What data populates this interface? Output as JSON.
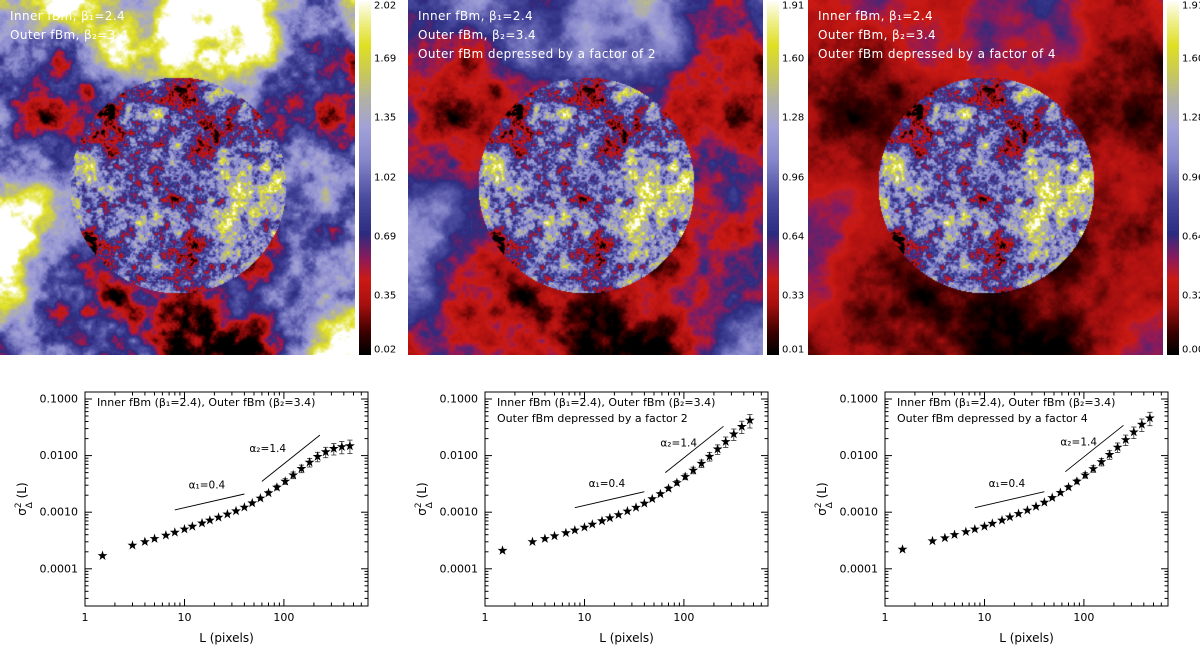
{
  "panels": [
    {
      "title_lines": [
        "Inner fBm, β₁=2.4",
        "Outer fBm, β₂=3.4"
      ],
      "colorbar_ticks": [
        "2.02",
        "1.69",
        "1.35",
        "1.02",
        "0.69",
        "0.35",
        "0.02"
      ],
      "vmin": 0.02,
      "vmax": 2.02,
      "outer_divisor": 1
    },
    {
      "title_lines": [
        "Inner fBm, β₁=2.4",
        "Outer fBm, β₂=3.4",
        "Outer fBm depressed by a factor of 2"
      ],
      "colorbar_ticks": [
        "1.91",
        "1.60",
        "1.28",
        "0.96",
        "0.64",
        "0.33",
        "0.01"
      ],
      "vmin": 0.01,
      "vmax": 1.91,
      "outer_divisor": 2
    },
    {
      "title_lines": [
        "Inner fBm, β₁=2.4",
        "Outer fBm, β₂=3.4",
        "Outer fBm depressed by a factor of 4"
      ],
      "colorbar_ticks": [
        "1.91",
        "1.60",
        "1.28",
        "0.96",
        "0.64",
        "0.32",
        "0.00"
      ],
      "vmin": 0.0,
      "vmax": 1.91,
      "outer_divisor": 4
    }
  ],
  "colormap": {
    "stops": [
      [
        0.0,
        "#000000"
      ],
      [
        0.06,
        "#3c0000"
      ],
      [
        0.14,
        "#a81010"
      ],
      [
        0.21,
        "#cc1a14"
      ],
      [
        0.27,
        "#8c1a5c"
      ],
      [
        0.34,
        "#2c2c80"
      ],
      [
        0.44,
        "#4c4ca0"
      ],
      [
        0.55,
        "#8888cc"
      ],
      [
        0.64,
        "#a2a2d8"
      ],
      [
        0.72,
        "#b2b2a6"
      ],
      [
        0.79,
        "#c8c85c"
      ],
      [
        0.87,
        "#e0e022"
      ],
      [
        0.94,
        "#f0f08e"
      ],
      [
        1.0,
        "#ffffff"
      ]
    ]
  },
  "chart_data": [
    {
      "type": "scatter",
      "legend_lines": [
        "Inner fBm (β₁=2.4), Outer fBm (β₂=3.4)"
      ],
      "xlabel": "L (pixels)",
      "ylabel_parts": {
        "base": "σ",
        "sup": "2",
        "sub": "Δ",
        "rest": " (L)"
      },
      "xlim": [
        1,
        700
      ],
      "ylim": [
        2.2e-05,
        0.133
      ],
      "xticks": [
        1,
        10,
        100
      ],
      "xtick_labels": [
        "1",
        "10",
        "100"
      ],
      "yticks": [
        0.0001,
        0.001,
        0.01,
        0.1
      ],
      "ytick_labels": [
        "0.0001",
        "0.0010",
        "0.0100",
        "0.1000"
      ],
      "x": [
        1.5,
        3,
        4,
        5,
        6.5,
        8,
        10,
        12,
        15,
        18,
        22,
        27,
        33,
        40,
        48,
        58,
        70,
        85,
        103,
        124,
        150,
        181,
        218,
        263,
        317,
        382,
        460
      ],
      "y": [
        0.00017,
        0.00026,
        0.0003,
        0.00034,
        0.00039,
        0.00044,
        0.0005,
        0.00056,
        0.00064,
        0.00072,
        0.00081,
        0.00092,
        0.00105,
        0.00122,
        0.00145,
        0.00176,
        0.00218,
        0.00274,
        0.0035,
        0.00452,
        0.0059,
        0.0076,
        0.0096,
        0.0116,
        0.0133,
        0.0143,
        0.0148
      ],
      "annotations": [
        {
          "label": "α₁=0.4",
          "x1": 8,
          "y1": 0.0011,
          "x2": 40,
          "y2": 0.0021,
          "lx": 11,
          "ly": 0.0026
        },
        {
          "label": "α₂=1.4",
          "x1": 60,
          "y1": 0.0035,
          "x2": 230,
          "y2": 0.023,
          "lx": 45,
          "ly": 0.0115
        }
      ]
    },
    {
      "type": "scatter",
      "legend_lines": [
        "Inner fBm (β₁=2.4), Outer fBm (β₂=3.4)",
        "Outer fBm depressed by a factor 2"
      ],
      "xlabel": "L (pixels)",
      "ylabel_parts": {
        "base": "σ",
        "sup": "2",
        "sub": "Δ",
        "rest": " (L)"
      },
      "xlim": [
        1,
        700
      ],
      "ylim": [
        2.2e-05,
        0.133
      ],
      "xticks": [
        1,
        10,
        100
      ],
      "xtick_labels": [
        "1",
        "10",
        "100"
      ],
      "yticks": [
        0.0001,
        0.001,
        0.01,
        0.1
      ],
      "ytick_labels": [
        "0.0001",
        "0.0010",
        "0.0100",
        "0.1000"
      ],
      "x": [
        1.5,
        3,
        4,
        5,
        6.5,
        8,
        10,
        12,
        15,
        18,
        22,
        27,
        33,
        40,
        48,
        58,
        70,
        85,
        103,
        124,
        150,
        181,
        218,
        263,
        317,
        382,
        460
      ],
      "y": [
        0.00021,
        0.0003,
        0.00034,
        0.00038,
        0.00043,
        0.00048,
        0.00054,
        0.00061,
        0.0007,
        0.00079,
        0.0009,
        0.00104,
        0.00121,
        0.00143,
        0.00172,
        0.0021,
        0.00262,
        0.00331,
        0.00424,
        0.0055,
        0.00725,
        0.00965,
        0.013,
        0.0176,
        0.024,
        0.0325,
        0.042
      ],
      "annotations": [
        {
          "label": "α₁=0.4",
          "x1": 8,
          "y1": 0.0012,
          "x2": 40,
          "y2": 0.0023,
          "lx": 11,
          "ly": 0.0028
        },
        {
          "label": "α₂=1.4",
          "x1": 65,
          "y1": 0.005,
          "x2": 250,
          "y2": 0.033,
          "lx": 58,
          "ly": 0.0145
        }
      ]
    },
    {
      "type": "scatter",
      "legend_lines": [
        "Inner fBm (β₁=2.4), Outer fBm (β₂=3.4)",
        "Outer fBm depressed by a factor 4"
      ],
      "xlabel": "L (pixels)",
      "ylabel_parts": {
        "base": "σ",
        "sup": "2",
        "sub": "Δ",
        "rest": " (L)"
      },
      "xlim": [
        1,
        700
      ],
      "ylim": [
        2.2e-05,
        0.133
      ],
      "xticks": [
        1,
        10,
        100
      ],
      "xtick_labels": [
        "1",
        "10",
        "100"
      ],
      "yticks": [
        0.0001,
        0.001,
        0.01,
        0.1
      ],
      "ytick_labels": [
        "0.0001",
        "0.0010",
        "0.0100",
        "0.1000"
      ],
      "x": [
        1.5,
        3,
        4,
        5,
        6.5,
        8,
        10,
        12,
        15,
        18,
        22,
        27,
        33,
        40,
        48,
        58,
        70,
        85,
        103,
        124,
        150,
        181,
        218,
        263,
        317,
        382,
        460
      ],
      "y": [
        0.00022,
        0.00031,
        0.00035,
        0.0004,
        0.00045,
        0.0005,
        0.00056,
        0.00063,
        0.00072,
        0.00082,
        0.00094,
        0.00108,
        0.00126,
        0.00149,
        0.0018,
        0.00221,
        0.00276,
        0.0035,
        0.0045,
        0.00585,
        0.00775,
        0.0104,
        0.014,
        0.019,
        0.026,
        0.0355,
        0.046
      ],
      "annotations": [
        {
          "label": "α₁=0.4",
          "x1": 8,
          "y1": 0.0012,
          "x2": 40,
          "y2": 0.0023,
          "lx": 11,
          "ly": 0.0028
        },
        {
          "label": "α₂=1.4",
          "x1": 65,
          "y1": 0.0052,
          "x2": 250,
          "y2": 0.0343,
          "lx": 58,
          "ly": 0.015
        }
      ]
    }
  ]
}
